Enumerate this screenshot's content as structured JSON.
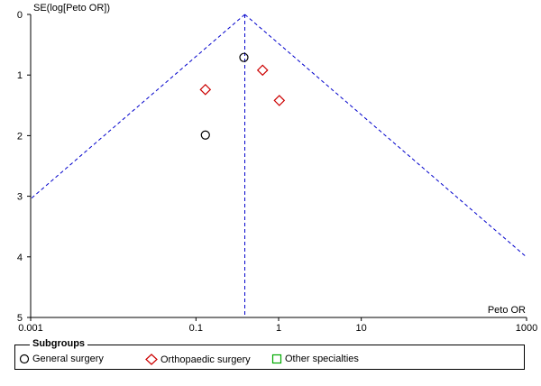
{
  "chart_data": {
    "type": "scatter",
    "title": "",
    "xlabel": "Peto OR",
    "ylabel": "SE(log[Peto OR])",
    "x_scale": "log",
    "xlim": [
      0.001,
      1000
    ],
    "ylim": [
      0,
      5
    ],
    "y_inverted": true,
    "x_ticks": [
      0.001,
      0.1,
      1,
      10,
      1000
    ],
    "x_tick_labels": [
      "0.001",
      "0.1",
      "1",
      "10",
      "1000"
    ],
    "y_ticks": [
      0,
      1,
      2,
      3,
      4,
      5
    ],
    "y_tick_labels": [
      "0",
      "1",
      "2",
      "3",
      "4",
      "5"
    ],
    "pooled_estimate": 0.39,
    "funnel_slope_se": 3,
    "series": [
      {
        "name": "General surgery",
        "marker": "circle",
        "color": "#000000",
        "points": [
          {
            "x": 0.38,
            "y": 0.71
          },
          {
            "x": 0.13,
            "y": 1.99
          }
        ]
      },
      {
        "name": "Orthopaedic surgery",
        "marker": "diamond",
        "color": "#cc0000",
        "points": [
          {
            "x": 0.13,
            "y": 1.24
          },
          {
            "x": 0.64,
            "y": 0.92
          },
          {
            "x": 1.02,
            "y": 1.42
          }
        ]
      },
      {
        "name": "Other specialties",
        "marker": "square",
        "color": "#00aa00",
        "points": []
      }
    ],
    "line_color": "#0000cc",
    "legend": {
      "title": "Subgroups",
      "position": "bottom"
    }
  }
}
